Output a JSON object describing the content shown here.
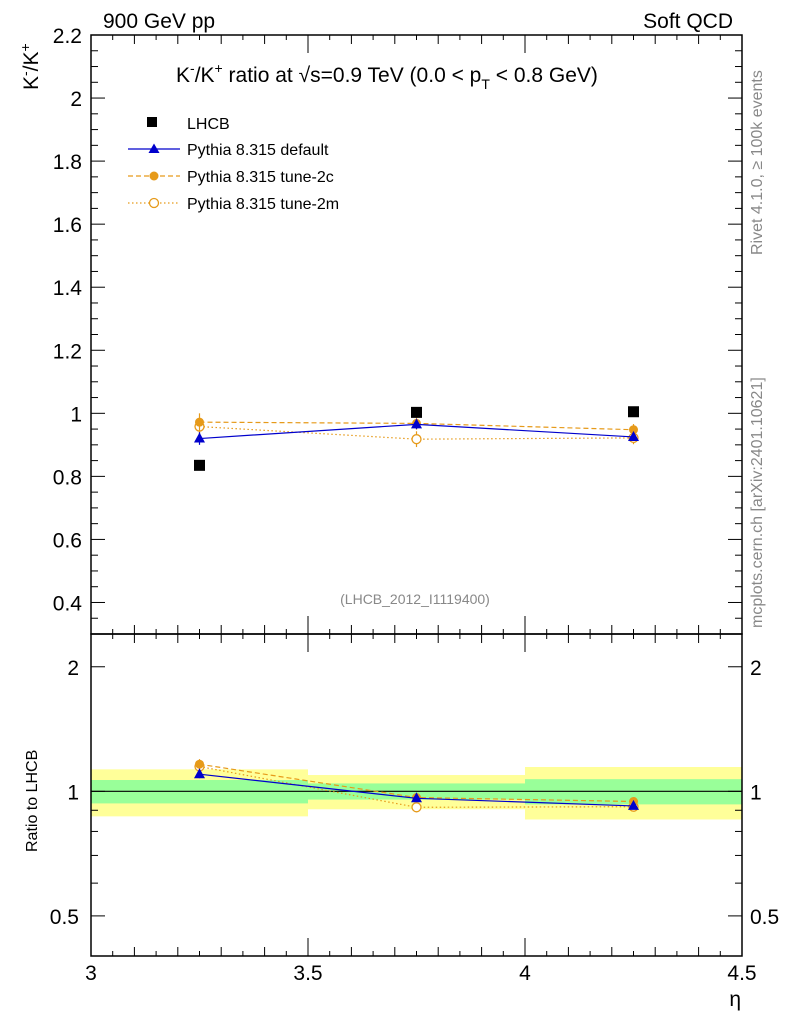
{
  "header": {
    "left": "900 GeV pp",
    "right": "Soft QCD"
  },
  "side": {
    "rivet": "Rivet 4.1.0, ≥ 100k events",
    "mcplots": "mcplots.cern.ch [arXiv:2401.10621]"
  },
  "chart_data": {
    "type": "scatter",
    "title": "K⁻/K⁺ ratio at √s=0.9 TeV (0.0 < p_T < 0.8 GeV)",
    "title_parts": {
      "kminus": "K",
      "sup1": "-",
      "slash": "/K",
      "sup2": "+",
      "ratio": " ratio at ",
      "sqrt": "√",
      "s": "s=0.9 TeV (0.0 < p",
      "sub": "T",
      "tail": " < 0.8 GeV)"
    },
    "ylabel": "K⁻/K⁺",
    "ylabel_parts": {
      "a": "K",
      "b": "-",
      "c": "/K",
      "d": "+"
    },
    "xlabel": "η",
    "ratio_ylabel": "Ratio to LHCB",
    "watermark": "(LHCB_2012_I1119400)",
    "xlim": [
      3.0,
      4.5
    ],
    "ylim": [
      0.3,
      2.2
    ],
    "ratio_ylim": [
      0.4,
      2.4
    ],
    "x_ticks": [
      "3",
      "3.5",
      "4",
      "4.5"
    ],
    "x_tick_values": [
      3.0,
      3.5,
      4.0,
      4.5
    ],
    "y_ticks": [
      "0.4",
      "0.6",
      "0.8",
      "1",
      "1.2",
      "1.4",
      "1.6",
      "1.8",
      "2",
      "2.2"
    ],
    "y_tick_values": [
      0.4,
      0.6,
      0.8,
      1.0,
      1.2,
      1.4,
      1.6,
      1.8,
      2.0,
      2.2
    ],
    "ratio_y_ticks": [
      "0.5",
      "1",
      "2"
    ],
    "ratio_y_tick_values": [
      0.5,
      1.0,
      2.0
    ],
    "x": [
      3.25,
      3.75,
      4.25
    ],
    "bins": [
      [
        3.0,
        3.5
      ],
      [
        3.5,
        4.0
      ],
      [
        4.0,
        4.5
      ]
    ],
    "series": [
      {
        "name": "LHCB",
        "color": "#000000",
        "marker": "square",
        "values": [
          0.835,
          1.003,
          1.005
        ],
        "band_inner": [
          [
            0.935,
            1.065
          ],
          [
            0.955,
            1.045
          ],
          [
            0.93,
            1.07
          ]
        ],
        "band_outer": [
          [
            0.87,
            1.13
          ],
          [
            0.905,
            1.095
          ],
          [
            0.855,
            1.145
          ]
        ]
      },
      {
        "name": "Pythia 8.315 default",
        "color": "#0000cc",
        "marker": "triangle",
        "line": "solid",
        "values": [
          0.92,
          0.965,
          0.925
        ],
        "errors": [
          0.02,
          0.015,
          0.012
        ],
        "ratio": [
          1.1,
          0.962,
          0.922
        ]
      },
      {
        "name": "Pythia 8.315 tune-2c",
        "color": "#e69a1a",
        "marker": "filled-circle",
        "line": "dashed",
        "values": [
          0.972,
          0.968,
          0.948
        ],
        "errors": [
          0.028,
          0.02,
          0.018
        ],
        "ratio": [
          1.163,
          0.966,
          0.945
        ]
      },
      {
        "name": "Pythia 8.315 tune-2m",
        "color": "#e69a1a",
        "marker": "open-circle",
        "line": "dotted",
        "values": [
          0.958,
          0.918,
          0.922
        ],
        "errors": [
          0.028,
          0.025,
          0.02
        ],
        "ratio": [
          1.148,
          0.915,
          0.918
        ]
      }
    ]
  }
}
